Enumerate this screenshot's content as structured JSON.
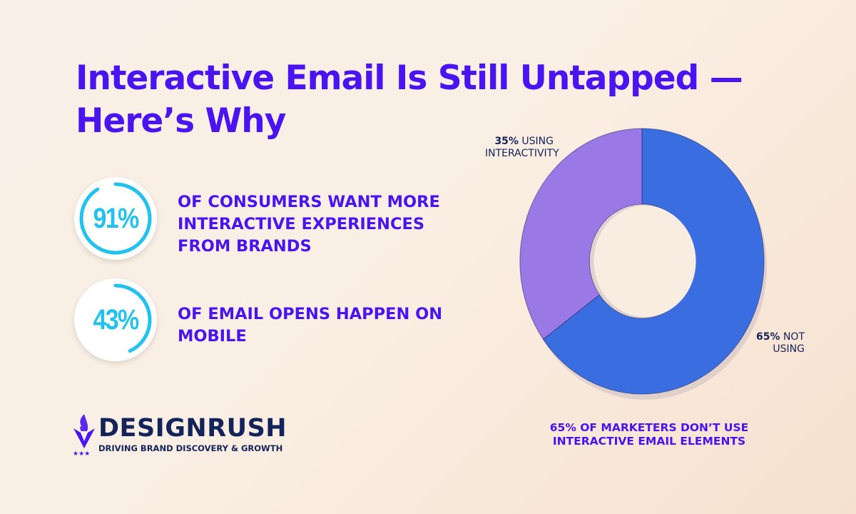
{
  "title_line1": "Interactive Email Is Still Untapped —",
  "title_line2": "Here’s Why",
  "stats": [
    {
      "value": "91%",
      "fraction": 0.91,
      "text": "OF CONSUMERS WANT MORE INTERACTIVE EXPERIENCES FROM BRANDS"
    },
    {
      "value": "43%",
      "fraction": 0.43,
      "text": "OF EMAIL OPENS HAPPEN ON MOBILE"
    }
  ],
  "logo": {
    "name": "DESIGNRUSH",
    "tagline": "DRIVING BRAND DISCOVERY & GROWTH"
  },
  "colors": {
    "accent": "#4a14f0",
    "ring": "#21c2ee",
    "using": "#9a78e6",
    "not_using": "#3a6ee0",
    "navy": "#13245a"
  },
  "chart_data": {
    "type": "pie",
    "donut": true,
    "categories": [
      "Using interactivity",
      "Not using"
    ],
    "values": [
      35,
      65
    ],
    "labels": [
      {
        "pct": "35%",
        "text": "USING INTERACTIVITY"
      },
      {
        "pct": "65%",
        "text": "NOT USING"
      }
    ],
    "caption": "65% OF MARKETERS DON’T USE INTERACTIVE EMAIL ELEMENTS"
  }
}
